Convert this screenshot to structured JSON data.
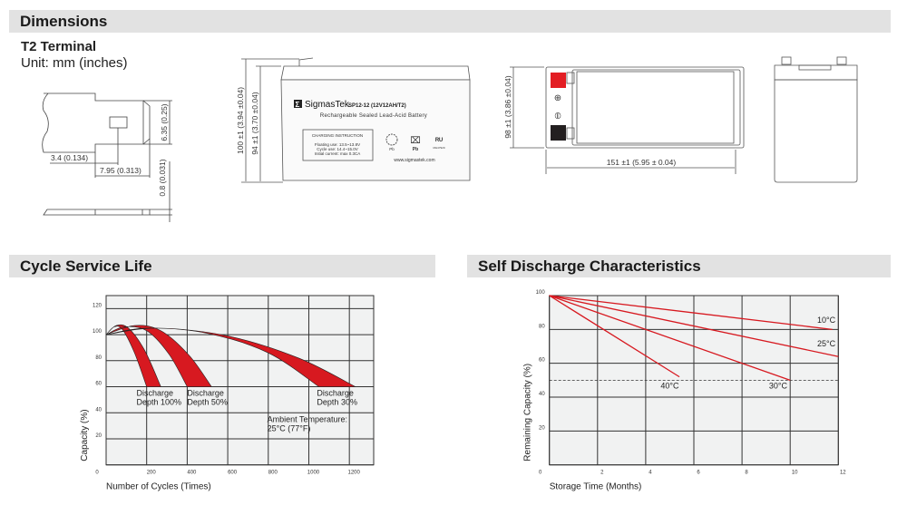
{
  "sections": {
    "dimensions": "Dimensions",
    "cycle_life": "Cycle Service Life",
    "self_discharge": "Self Discharge Characteristics"
  },
  "terminal": {
    "title": "T2 Terminal",
    "unit": "Unit: mm (inches)",
    "dim_height": "6.35 (0.25)",
    "dim_a": "3.4 (0.134)",
    "dim_b": "7.95 (0.313)",
    "dim_thickness": "0.8 (0.031)"
  },
  "front_view": {
    "dim_total_height": "100 ±1 (3.94 ±0.04)",
    "dim_case_height": "94 ±1 (3.70 ±0.04)",
    "brand": "SigmasTek",
    "model": "SP12-12 (12V12AH/T2)",
    "description": "Rechargeable Sealed Lead-Acid Battery",
    "charging_title": "CHARGING INSTRUCTION",
    "charging_lines": [
      "Floating use: 13.5~13.8V",
      "Cycle use: 14.4~15.0V",
      "Initial current: max 0.3CA"
    ],
    "recycle_label": "Pb",
    "bin_label": "Pb",
    "ul_code": "MH47929",
    "website": "www.sigmastek.com"
  },
  "top_view": {
    "dim_width": "98 ±1 (3.86 ±0.04)",
    "dim_length": "151 ±1 (5.95 ± 0.04)",
    "positive_color": "#e31e24",
    "negative_color": "#231f20"
  },
  "chart_data": [
    {
      "type": "area",
      "title": "Cycle Service Life",
      "xlabel": "Number of Cycles (Times)",
      "ylabel": "Capacity (%)",
      "xlim": [
        0,
        1320
      ],
      "ylim": [
        0,
        130
      ],
      "xticks": [
        0,
        200,
        400,
        600,
        800,
        1000,
        1200
      ],
      "yticks": [
        0,
        20,
        40,
        60,
        80,
        100,
        120
      ],
      "grid": true,
      "band_color": "#d71920",
      "series": [
        {
          "name": "Discharge Depth 100%",
          "label_lines": [
            "Discharge",
            "Depth 100%"
          ],
          "label_at": [
            150,
            53
          ],
          "lower": [
            [
              0,
              100
            ],
            [
              40,
              106
            ],
            [
              80,
              104
            ],
            [
              140,
              86
            ],
            [
              200,
              60
            ]
          ],
          "upper": [
            [
              0,
              100
            ],
            [
              50,
              107
            ],
            [
              110,
              105
            ],
            [
              190,
              88
            ],
            [
              270,
              60
            ]
          ]
        },
        {
          "name": "Discharge Depth 50%",
          "label_lines": [
            "Discharge",
            "Depth 50%"
          ],
          "label_at": [
            400,
            53
          ],
          "lower": [
            [
              0,
              100
            ],
            [
              90,
              106
            ],
            [
              200,
              103
            ],
            [
              310,
              85
            ],
            [
              400,
              60
            ]
          ],
          "upper": [
            [
              0,
              100
            ],
            [
              140,
              107
            ],
            [
              270,
              103
            ],
            [
              410,
              84
            ],
            [
              520,
              60
            ]
          ]
        },
        {
          "name": "Discharge Depth 30%",
          "label_lines": [
            "Discharge",
            "Depth 30%"
          ],
          "label_at": [
            1040,
            53
          ],
          "lower": [
            [
              0,
              100
            ],
            [
              200,
              105
            ],
            [
              500,
              101
            ],
            [
              800,
              86
            ],
            [
              1050,
              60
            ]
          ],
          "upper": [
            [
              0,
              100
            ],
            [
              250,
              105
            ],
            [
              600,
              99
            ],
            [
              950,
              82
            ],
            [
              1230,
              60
            ]
          ]
        }
      ],
      "annotation": [
        "Ambient Temperature:",
        "25°C (77°F)"
      ]
    },
    {
      "type": "line",
      "title": "Self Discharge Characteristics",
      "xlabel": "Storage Time (Months)",
      "ylabel": "Remaining Capacity (%)",
      "xlim": [
        0,
        12
      ],
      "ylim": [
        0,
        100
      ],
      "xticks": [
        0,
        2,
        4,
        6,
        8,
        10,
        12
      ],
      "yticks": [
        0,
        20,
        40,
        60,
        80,
        100
      ],
      "grid": true,
      "line_color": "#d71920",
      "reference_line": 50,
      "series": [
        {
          "name": "10°C",
          "points": [
            [
              0,
              100
            ],
            [
              11.75,
              80
            ]
          ],
          "label_at": [
            11.5,
            84
          ]
        },
        {
          "name": "25°C",
          "points": [
            [
              0,
              100
            ],
            [
              12,
              64
            ]
          ],
          "label_at": [
            11.5,
            70
          ]
        },
        {
          "name": "30°C",
          "points": [
            [
              0,
              100
            ],
            [
              10,
              50
            ]
          ],
          "label_at": [
            9.5,
            45
          ]
        },
        {
          "name": "40°C",
          "points": [
            [
              0,
              100
            ],
            [
              5.4,
              52
            ]
          ],
          "label_at": [
            5.0,
            45
          ]
        }
      ]
    }
  ]
}
